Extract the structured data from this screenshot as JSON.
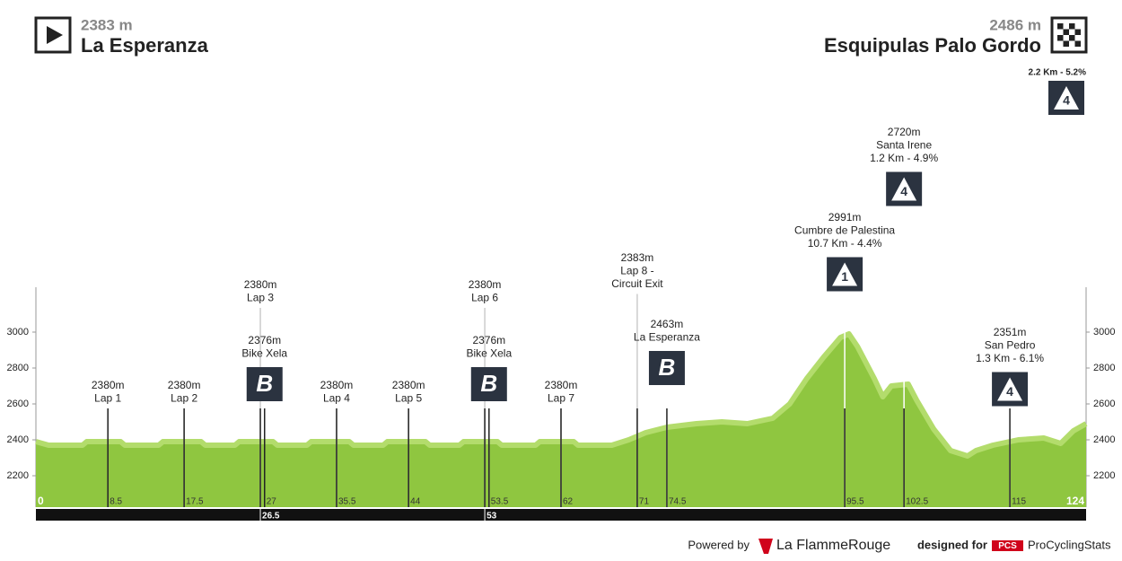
{
  "header": {
    "start": {
      "elevation": "2383 m",
      "name": "La Esperanza"
    },
    "finish": {
      "elevation": "2486 m",
      "name": "Esquipulas Palo Gordo"
    },
    "finish_climb": {
      "label": "2.2 Km - 5.2%",
      "icon": "4"
    }
  },
  "chart_data": {
    "type": "area",
    "color": "#8fc640",
    "x": [
      0,
      1.5,
      5.5,
      6,
      10,
      10.5,
      14.5,
      15,
      19.5,
      20,
      23.5,
      24,
      28,
      28.5,
      32,
      32.5,
      37,
      37.5,
      41,
      41.5,
      46,
      46.5,
      50,
      50.5,
      54.5,
      55,
      59,
      59.5,
      63.5,
      64,
      68,
      70,
      72,
      74.5,
      78,
      81,
      84,
      87,
      89,
      91,
      93,
      95,
      96,
      97,
      99,
      100,
      101,
      103,
      104,
      106,
      108,
      110,
      111,
      113,
      116,
      119,
      121,
      122.5,
      124
    ],
    "values": [
      2390,
      2370,
      2370,
      2390,
      2390,
      2370,
      2370,
      2390,
      2390,
      2370,
      2370,
      2390,
      2390,
      2370,
      2370,
      2390,
      2390,
      2370,
      2370,
      2390,
      2390,
      2370,
      2370,
      2390,
      2390,
      2370,
      2370,
      2390,
      2390,
      2370,
      2370,
      2400,
      2440,
      2470,
      2490,
      2500,
      2490,
      2520,
      2600,
      2740,
      2860,
      2970,
      2990,
      2920,
      2740,
      2640,
      2700,
      2710,
      2620,
      2460,
      2340,
      2310,
      2340,
      2370,
      2400,
      2410,
      2380,
      2450,
      2490
    ],
    "xlim": [
      0,
      124
    ],
    "ylim": [
      2025,
      3250
    ],
    "yticks": [
      2200,
      2400,
      2600,
      2800,
      3000
    ],
    "km_labels": [
      0,
      8.5,
      17.5,
      27,
      35.5,
      44,
      53.5,
      62,
      71,
      74.5,
      95.5,
      102.5,
      115,
      124
    ],
    "sector_labels": [
      26.5,
      53
    ],
    "annotations": [
      {
        "km": 8.5,
        "lines": [
          "2380m",
          "Lap 1"
        ]
      },
      {
        "km": 17.5,
        "lines": [
          "2380m",
          "Lap 2"
        ]
      },
      {
        "km": 26.5,
        "lines": [
          "2380m",
          "Lap 3"
        ]
      },
      {
        "km": 27,
        "lines": [
          "2376m",
          "Bike Xela"
        ],
        "icon": "B"
      },
      {
        "km": 35.5,
        "lines": [
          "2380m",
          "Lap 4"
        ]
      },
      {
        "km": 44,
        "lines": [
          "2380m",
          "Lap 5"
        ]
      },
      {
        "km": 53,
        "lines": [
          "2380m",
          "Lap 6"
        ]
      },
      {
        "km": 53.5,
        "lines": [
          "2376m",
          "Bike Xela"
        ],
        "icon": "B"
      },
      {
        "km": 62,
        "lines": [
          "2380m",
          "Lap 7"
        ]
      },
      {
        "km": 71,
        "lines": [
          "2383m",
          "Lap 8 -",
          "Circuit Exit"
        ]
      },
      {
        "km": 74.5,
        "lines": [
          "2463m",
          "La Esperanza"
        ],
        "icon": "B"
      },
      {
        "km": 95.5,
        "lines": [
          "2991m",
          "Cumbre de Palestina",
          "10.7 Km - 4.4%"
        ],
        "icon": "1"
      },
      {
        "km": 102.5,
        "lines": [
          "2720m",
          "Santa Irene",
          "1.2 Km - 4.9%"
        ],
        "icon": "4"
      },
      {
        "km": 115,
        "lines": [
          "2351m",
          "San Pedro",
          "1.3 Km - 6.1%"
        ],
        "icon": "4"
      }
    ]
  },
  "footer": {
    "powered": "Powered by",
    "brand": "La FlammeRouge",
    "designed": "designed for",
    "pcs": "PCS",
    "pcs_name": "ProCyclingStats"
  }
}
